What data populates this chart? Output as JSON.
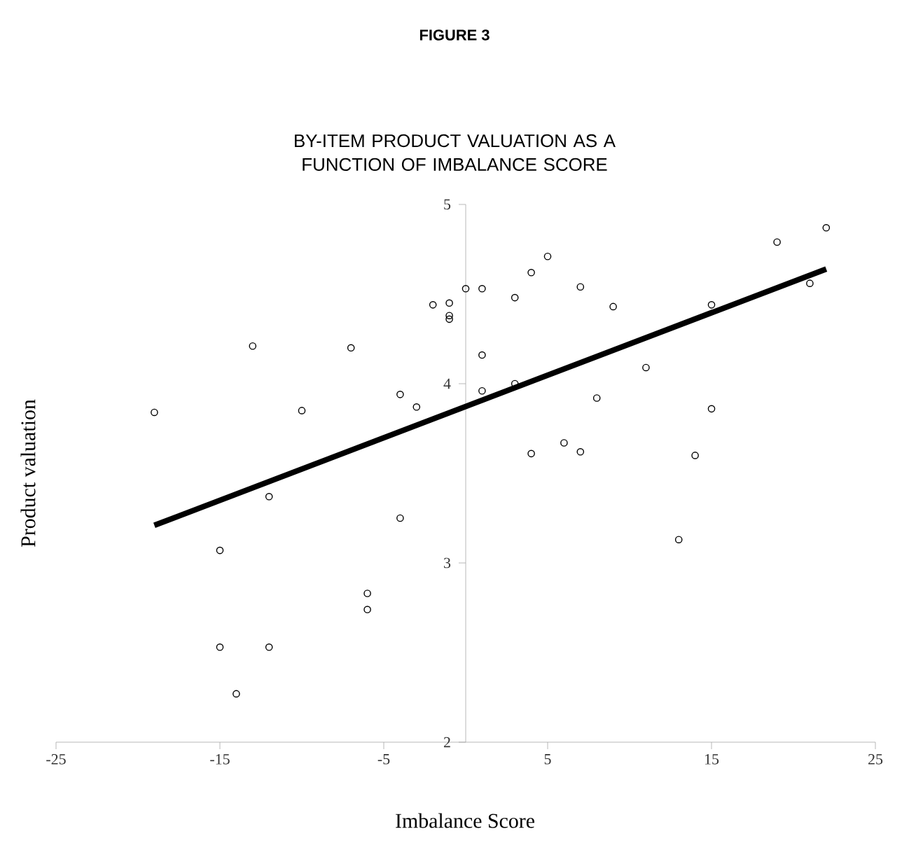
{
  "chart_data": {
    "type": "scatter",
    "title": "FIGURE 3",
    "subtitle": "BY-ITEM PRODUCT VALUATION AS A FUNCTION OF IMBALANCE SCORE",
    "xlabel": "Imbalance Score",
    "ylabel": "Product valuation",
    "xlim": [
      -25,
      25
    ],
    "xticks": [
      -25,
      -15,
      -5,
      5,
      15,
      25
    ],
    "ylim": [
      2,
      5
    ],
    "yticks": [
      2,
      3,
      4,
      5
    ],
    "grid": false,
    "marker": "circle",
    "series": [
      {
        "color": "#000000",
        "x": [
          -19,
          -15,
          -15,
          -14,
          -13,
          -12,
          -12,
          -10,
          -7,
          -6,
          -6,
          -4,
          -4,
          -3,
          -2,
          -1,
          -1,
          -1,
          0,
          1,
          1,
          1,
          3,
          3,
          4,
          4,
          5,
          6,
          7,
          7,
          8,
          9,
          11,
          13,
          14,
          15,
          15,
          19,
          21,
          22
        ],
        "values": [
          3.84,
          3.07,
          2.53,
          2.27,
          4.21,
          3.37,
          2.53,
          3.85,
          4.2,
          2.83,
          2.74,
          3.94,
          3.25,
          3.87,
          4.44,
          4.45,
          4.38,
          4.36,
          4.53,
          4.53,
          4.16,
          3.96,
          4.48,
          4.0,
          4.62,
          3.61,
          4.71,
          3.67,
          4.54,
          3.62,
          3.92,
          4.43,
          4.09,
          3.13,
          3.6,
          4.44,
          3.86,
          4.79,
          4.56,
          4.87
        ]
      },
      {
        "type": "line",
        "marker": "none",
        "color": "#000000",
        "x": [
          -19,
          22
        ],
        "values": [
          3.21,
          4.64
        ]
      }
    ]
  }
}
